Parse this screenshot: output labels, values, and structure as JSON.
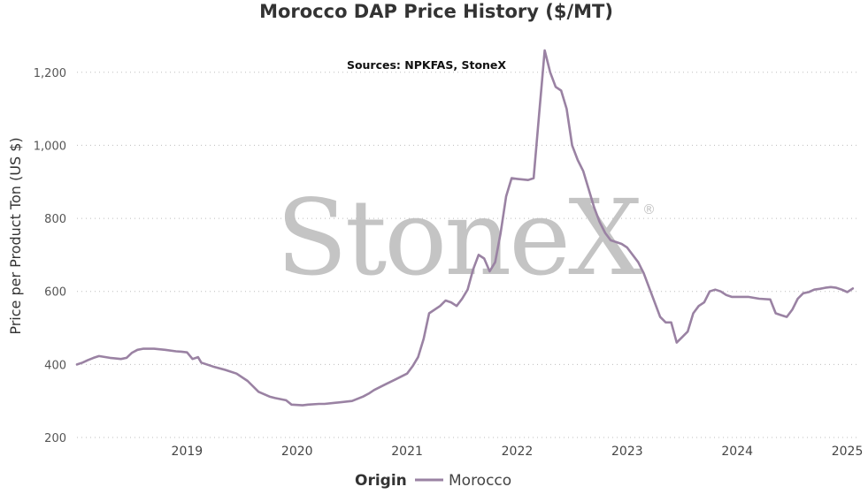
{
  "chart_data": {
    "type": "line",
    "title": "Morocco DAP Price History ($/MT)",
    "subtitle": "Sources: NPKFAS, StoneX",
    "ylabel": "Price per Product Ton (US $)",
    "xlabel": "",
    "ylim": [
      200,
      1260
    ],
    "xlim": [
      2018.0,
      2025.1
    ],
    "y_ticks": [
      200,
      400,
      600,
      800,
      1000,
      1200
    ],
    "y_tick_labels": [
      "200",
      "400",
      "600",
      "800",
      "1,000",
      "1,200"
    ],
    "x_ticks": [
      2019,
      2020,
      2021,
      2022,
      2023,
      2024,
      2025
    ],
    "x_tick_labels": [
      "2019",
      "2020",
      "2021",
      "2022",
      "2023",
      "2024",
      "2025"
    ],
    "grid": "horizontal dotted",
    "legend_position": "bottom-center",
    "legend_title": "Origin",
    "watermark": "StoneX",
    "watermark_mark": "®",
    "colors": {
      "series": "#9a82a3",
      "watermark": "#c4c4c4"
    },
    "series": [
      {
        "name": "Morocco",
        "color": "#9a82a3",
        "x": [
          2018.0,
          2018.05,
          2018.1,
          2018.15,
          2018.2,
          2018.3,
          2018.4,
          2018.45,
          2018.5,
          2018.55,
          2018.6,
          2018.7,
          2018.8,
          2018.9,
          2018.95,
          2019.0,
          2019.05,
          2019.1,
          2019.13,
          2019.2,
          2019.25,
          2019.35,
          2019.45,
          2019.55,
          2019.65,
          2019.75,
          2019.8,
          2019.9,
          2019.95,
          2020.05,
          2020.1,
          2020.2,
          2020.25,
          2020.35,
          2020.5,
          2020.6,
          2020.65,
          2020.7,
          2020.8,
          2020.9,
          2021.0,
          2021.05,
          2021.1,
          2021.15,
          2021.2,
          2021.3,
          2021.35,
          2021.4,
          2021.45,
          2021.5,
          2021.55,
          2021.6,
          2021.65,
          2021.7,
          2021.75,
          2021.8,
          2021.85,
          2021.9,
          2021.95,
          2022.0,
          2022.1,
          2022.15,
          2022.2,
          2022.25,
          2022.3,
          2022.35,
          2022.4,
          2022.45,
          2022.5,
          2022.55,
          2022.6,
          2022.65,
          2022.7,
          2022.75,
          2022.8,
          2022.85,
          2022.9,
          2022.95,
          2023.0,
          2023.1,
          2023.15,
          2023.2,
          2023.25,
          2023.3,
          2023.35,
          2023.4,
          2023.45,
          2023.5,
          2023.55,
          2023.6,
          2023.65,
          2023.7,
          2023.75,
          2023.8,
          2023.85,
          2023.9,
          2023.95,
          2024.0,
          2024.1,
          2024.2,
          2024.3,
          2024.35,
          2024.4,
          2024.45,
          2024.5,
          2024.55,
          2024.6,
          2024.65,
          2024.7,
          2024.75,
          2024.8,
          2024.85,
          2024.9,
          2024.95,
          2025.0,
          2025.05
        ],
        "y": [
          400,
          405,
          412,
          418,
          423,
          418,
          415,
          418,
          432,
          440,
          443,
          443,
          440,
          436,
          435,
          433,
          415,
          420,
          405,
          398,
          393,
          385,
          375,
          355,
          325,
          312,
          308,
          302,
          290,
          288,
          290,
          292,
          292,
          295,
          300,
          312,
          320,
          330,
          345,
          360,
          375,
          395,
          420,
          470,
          540,
          560,
          575,
          570,
          560,
          580,
          605,
          660,
          700,
          690,
          655,
          680,
          760,
          860,
          910,
          908,
          905,
          910,
          1085,
          1260,
          1200,
          1160,
          1150,
          1100,
          1000,
          960,
          930,
          880,
          830,
          790,
          760,
          740,
          735,
          730,
          720,
          680,
          650,
          610,
          570,
          530,
          515,
          515,
          460,
          475,
          490,
          540,
          560,
          570,
          600,
          605,
          600,
          590,
          585,
          585,
          585,
          580,
          578,
          540,
          535,
          530,
          550,
          580,
          595,
          598,
          605,
          607,
          610,
          612,
          610,
          605,
          598,
          608
        ]
      }
    ]
  }
}
